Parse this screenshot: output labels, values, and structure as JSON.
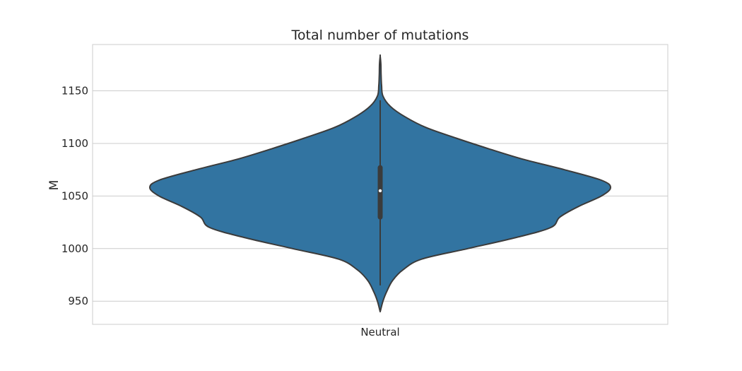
{
  "chart_data": {
    "type": "violin",
    "title": "Total number of mutations",
    "xlabel": "",
    "ylabel": "M",
    "categories": [
      "Neutral"
    ],
    "ylim": [
      928,
      1194
    ],
    "yticks": [
      950,
      1000,
      1050,
      1100,
      1150
    ],
    "grid": "horizontal",
    "color": "#3274a1",
    "edge_color": "#3b3b3b",
    "violins": [
      {
        "category": "Neutral",
        "median": 1055,
        "q1": 1030,
        "q3": 1077,
        "whisker_low": 965,
        "whisker_high": 1141,
        "density_profile": [
          [
            940,
            0.0
          ],
          [
            950,
            0.012
          ],
          [
            960,
            0.03
          ],
          [
            970,
            0.055
          ],
          [
            980,
            0.1
          ],
          [
            990,
            0.18
          ],
          [
            1000,
            0.38
          ],
          [
            1010,
            0.58
          ],
          [
            1020,
            0.74
          ],
          [
            1030,
            0.78
          ],
          [
            1040,
            0.86
          ],
          [
            1050,
            0.96
          ],
          [
            1058,
            1.0
          ],
          [
            1065,
            0.96
          ],
          [
            1075,
            0.8
          ],
          [
            1085,
            0.62
          ],
          [
            1095,
            0.47
          ],
          [
            1105,
            0.33
          ],
          [
            1115,
            0.2
          ],
          [
            1125,
            0.11
          ],
          [
            1135,
            0.045
          ],
          [
            1145,
            0.012
          ],
          [
            1155,
            0.006
          ],
          [
            1165,
            0.004
          ],
          [
            1175,
            0.003
          ],
          [
            1183,
            0.0
          ]
        ]
      }
    ]
  }
}
